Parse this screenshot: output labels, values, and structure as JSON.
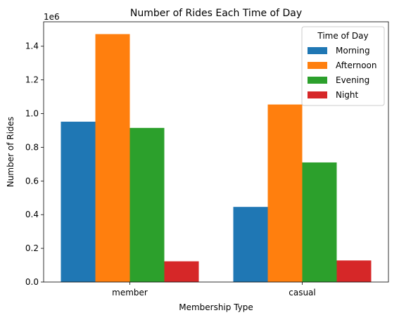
{
  "chart_data": {
    "type": "bar",
    "title": "Number of Rides Each Time of Day",
    "xlabel": "Membership Type",
    "ylabel": "Number of Rides",
    "y_multiplier_label": "1e6",
    "categories": [
      "member",
      "casual"
    ],
    "series": [
      {
        "name": "Morning",
        "color": "#1f77b4",
        "values": [
          952000,
          446000
        ]
      },
      {
        "name": "Afternoon",
        "color": "#ff7f0e",
        "values": [
          1472000,
          1054000
        ]
      },
      {
        "name": "Evening",
        "color": "#2ca02c",
        "values": [
          915000,
          710000
        ]
      },
      {
        "name": "Night",
        "color": "#d62728",
        "values": [
          123000,
          128000
        ]
      }
    ],
    "ylim": [
      0,
      1545000
    ],
    "y_ticks": [
      {
        "value": 0,
        "label": "0.0"
      },
      {
        "value": 200000,
        "label": "0.2"
      },
      {
        "value": 400000,
        "label": "0.4"
      },
      {
        "value": 600000,
        "label": "0.6"
      },
      {
        "value": 800000,
        "label": "0.8"
      },
      {
        "value": 1000000,
        "label": "1.0"
      },
      {
        "value": 1200000,
        "label": "1.2"
      },
      {
        "value": 1400000,
        "label": "1.4"
      }
    ],
    "legend": {
      "title": "Time of Day",
      "placement": "top-right"
    },
    "grid": false
  }
}
